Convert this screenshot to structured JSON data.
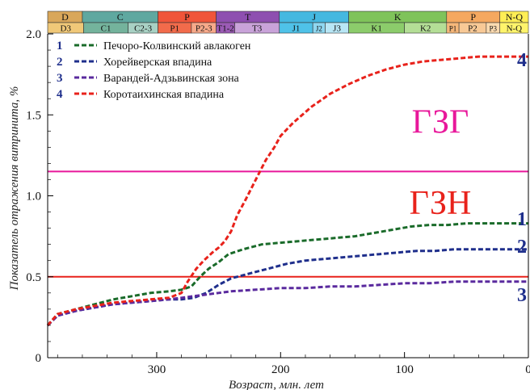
{
  "chart_data": {
    "type": "line",
    "xlabel": "Возраст, млн. лет",
    "ylabel": "Показатель отражения витринита, %",
    "xlim": [
      388,
      0
    ],
    "ylim": [
      0,
      2.0
    ],
    "x_ticks": [
      300,
      200,
      100,
      0
    ],
    "y_ticks": [
      0,
      0.5,
      1.0,
      1.5,
      2.0
    ],
    "y_tick_labels": [
      "0",
      "0.5",
      "1.0",
      "1.5",
      "2.0"
    ],
    "grid": false,
    "legend_position": "top-left",
    "series": [
      {
        "id": "1",
        "name": "Печоро-Колвинский авлакоген",
        "color": "#1a6b2a",
        "end_label": "1",
        "x": [
          388,
          380,
          365,
          350,
          335,
          320,
          305,
          290,
          280,
          272,
          265,
          258,
          250,
          242,
          230,
          215,
          200,
          185,
          170,
          155,
          140,
          125,
          110,
          95,
          80,
          65,
          50,
          35,
          20,
          10,
          0
        ],
        "y": [
          0.2,
          0.27,
          0.3,
          0.33,
          0.36,
          0.38,
          0.4,
          0.41,
          0.42,
          0.44,
          0.5,
          0.55,
          0.59,
          0.64,
          0.67,
          0.7,
          0.71,
          0.72,
          0.73,
          0.74,
          0.75,
          0.77,
          0.79,
          0.81,
          0.82,
          0.82,
          0.83,
          0.83,
          0.83,
          0.83,
          0.83
        ]
      },
      {
        "id": "2",
        "name": "Хорейверская впадина",
        "color": "#1f2f8c",
        "end_label": "2",
        "x": [
          388,
          380,
          365,
          350,
          335,
          320,
          305,
          290,
          280,
          270,
          260,
          250,
          240,
          225,
          210,
          195,
          180,
          165,
          150,
          135,
          120,
          105,
          90,
          75,
          60,
          45,
          30,
          15,
          0
        ],
        "y": [
          0.2,
          0.26,
          0.29,
          0.31,
          0.33,
          0.34,
          0.35,
          0.36,
          0.36,
          0.37,
          0.4,
          0.45,
          0.49,
          0.52,
          0.55,
          0.58,
          0.6,
          0.61,
          0.62,
          0.63,
          0.64,
          0.65,
          0.66,
          0.66,
          0.67,
          0.67,
          0.67,
          0.67,
          0.67
        ]
      },
      {
        "id": "3",
        "name": "Варандей-Адзьвинская зона",
        "color": "#5a2a9e",
        "end_label": "3",
        "x": [
          388,
          380,
          365,
          350,
          335,
          320,
          305,
          290,
          280,
          270,
          260,
          250,
          240,
          220,
          200,
          180,
          160,
          140,
          120,
          100,
          80,
          60,
          40,
          20,
          0
        ],
        "y": [
          0.2,
          0.26,
          0.29,
          0.31,
          0.33,
          0.34,
          0.35,
          0.36,
          0.37,
          0.38,
          0.39,
          0.4,
          0.41,
          0.42,
          0.43,
          0.43,
          0.44,
          0.44,
          0.45,
          0.46,
          0.46,
          0.47,
          0.47,
          0.47,
          0.47
        ]
      },
      {
        "id": "4",
        "name": "Коротаихинская впадина",
        "color": "#e8221b",
        "end_label": "4",
        "x": [
          388,
          380,
          365,
          350,
          335,
          320,
          305,
          290,
          280,
          275,
          268,
          262,
          255,
          250,
          245,
          240,
          235,
          228,
          220,
          212,
          205,
          200,
          190,
          175,
          160,
          145,
          130,
          115,
          100,
          85,
          70,
          55,
          40,
          25,
          10,
          0
        ],
        "y": [
          0.2,
          0.27,
          0.3,
          0.32,
          0.34,
          0.35,
          0.36,
          0.37,
          0.4,
          0.47,
          0.55,
          0.6,
          0.65,
          0.68,
          0.72,
          0.78,
          0.88,
          0.98,
          1.1,
          1.22,
          1.3,
          1.37,
          1.45,
          1.55,
          1.63,
          1.69,
          1.74,
          1.78,
          1.81,
          1.83,
          1.84,
          1.85,
          1.86,
          1.86,
          1.86,
          1.86
        ]
      }
    ],
    "reference_lines": [
      {
        "y": 1.15,
        "color": "#e8179a",
        "label": "ГЗГ"
      },
      {
        "y": 0.5,
        "color": "#e8221b",
        "label": "ГЗН"
      }
    ],
    "stratigraphy": {
      "periods": [
        {
          "label": "D",
          "start": 388,
          "end": 360,
          "color": "#d9a75a"
        },
        {
          "label": "C",
          "start": 360,
          "end": 299,
          "color": "#5fa8a0"
        },
        {
          "label": "P",
          "start": 299,
          "end": 252,
          "color": "#f0553a"
        },
        {
          "label": "T",
          "start": 252,
          "end": 201,
          "color": "#8e4fb0"
        },
        {
          "label": "J",
          "start": 201,
          "end": 145,
          "color": "#45b8e0"
        },
        {
          "label": "K",
          "start": 145,
          "end": 66,
          "color": "#7fc35a"
        },
        {
          "label": "P",
          "start": 66,
          "end": 23,
          "color": "#f5a860"
        },
        {
          "label": "N-Q",
          "start": 23,
          "end": 0,
          "color": "#ffee55"
        }
      ],
      "epochs": [
        {
          "label": "D3",
          "start": 388,
          "end": 359,
          "color": "#f0c878"
        },
        {
          "label": "C1",
          "start": 359,
          "end": 323,
          "color": "#74b39c"
        },
        {
          "label": "C2-3",
          "start": 323,
          "end": 299,
          "color": "#a8d1c4"
        },
        {
          "label": "P1",
          "start": 299,
          "end": 272,
          "color": "#f26b4b"
        },
        {
          "label": "P2-3",
          "start": 272,
          "end": 252,
          "color": "#f7a98a"
        },
        {
          "label": "T1-2",
          "start": 252,
          "end": 237,
          "color": "#9b5bb5"
        },
        {
          "label": "T3",
          "start": 237,
          "end": 201,
          "color": "#c9a3d9"
        },
        {
          "label": "J1",
          "start": 201,
          "end": 174,
          "color": "#4fc2e8"
        },
        {
          "label": "J2",
          "start": 174,
          "end": 164,
          "color": "#8fd7f0"
        },
        {
          "label": "J3",
          "start": 164,
          "end": 145,
          "color": "#b8e6f5"
        },
        {
          "label": "K1",
          "start": 145,
          "end": 100,
          "color": "#8ccc6b"
        },
        {
          "label": "K2",
          "start": 100,
          "end": 66,
          "color": "#b4de96"
        },
        {
          "label": "P1",
          "start": 66,
          "end": 56,
          "color": "#f6b77a"
        },
        {
          "label": "P2",
          "start": 56,
          "end": 34,
          "color": "#f8c996"
        },
        {
          "label": "P3",
          "start": 34,
          "end": 23,
          "color": "#fbdab0"
        },
        {
          "label": "N-Q",
          "start": 23,
          "end": 0,
          "color": "#fff46b"
        }
      ]
    }
  }
}
